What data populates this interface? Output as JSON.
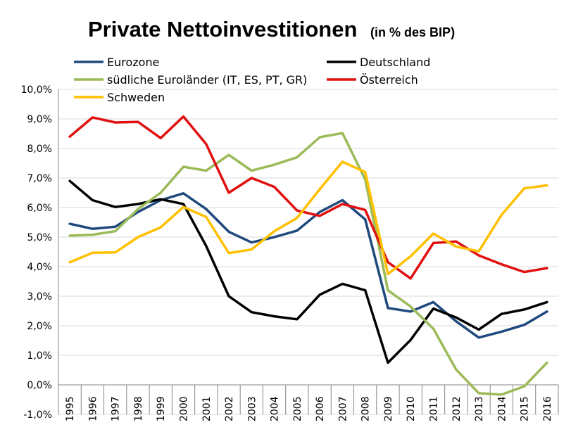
{
  "chart_data": {
    "type": "line",
    "title": "Private Nettoinvestitionen",
    "subtitle": "(in % des BIP)",
    "xlabel": "",
    "ylabel": "",
    "ylim": [
      -1,
      10
    ],
    "yticks": [
      -1,
      0,
      1,
      2,
      3,
      4,
      5,
      6,
      7,
      8,
      9,
      10
    ],
    "ytick_labels": [
      "-1,0%",
      "0,0%",
      "1,0%",
      "2,0%",
      "3,0%",
      "4,0%",
      "5,0%",
      "6,0%",
      "7,0%",
      "8,0%",
      "9,0%",
      "10,0%"
    ],
    "grid": true,
    "legend_position": "top",
    "categories": [
      "1995",
      "1996",
      "1997",
      "1998",
      "1999",
      "2000",
      "2001",
      "2002",
      "2003",
      "2004",
      "2005",
      "2006",
      "2007",
      "2008",
      "2009",
      "2010",
      "2011",
      "2012",
      "2013",
      "2014",
      "2015",
      "2016"
    ],
    "series": [
      {
        "name": "Eurozone",
        "color": "#1f497d",
        "values": [
          5.45,
          5.28,
          5.35,
          5.85,
          6.25,
          6.48,
          5.95,
          5.18,
          4.82,
          5.0,
          5.22,
          5.85,
          6.25,
          5.6,
          2.6,
          2.48,
          2.8,
          2.15,
          1.6,
          1.8,
          2.03,
          2.48
        ]
      },
      {
        "name": "Deutschland",
        "color": "#000000",
        "values": [
          6.9,
          6.25,
          6.02,
          6.12,
          6.28,
          6.12,
          4.7,
          3.0,
          2.46,
          2.32,
          2.22,
          3.05,
          3.42,
          3.2,
          0.75,
          1.52,
          2.58,
          2.28,
          1.87,
          2.4,
          2.55,
          2.8
        ]
      },
      {
        "name": "südliche Euroländer (IT, ES, PT, GR)",
        "color": "#9bbb59",
        "values": [
          5.05,
          5.08,
          5.2,
          5.95,
          6.5,
          7.38,
          7.25,
          7.78,
          7.25,
          7.45,
          7.7,
          8.38,
          8.52,
          6.95,
          3.2,
          2.65,
          1.9,
          0.52,
          -0.28,
          -0.33,
          -0.05,
          0.75
        ]
      },
      {
        "name": "Österreich",
        "color": "#e01010",
        "values": [
          8.4,
          9.05,
          8.88,
          8.9,
          8.35,
          9.08,
          8.15,
          6.5,
          7.0,
          6.7,
          5.9,
          5.72,
          6.12,
          5.92,
          4.15,
          3.6,
          4.8,
          4.85,
          4.38,
          4.08,
          3.82,
          3.95
        ]
      },
      {
        "name": "Schweden",
        "color": "#ffc000",
        "values": [
          4.15,
          4.47,
          4.48,
          5.0,
          5.33,
          6.02,
          5.68,
          4.46,
          4.58,
          5.2,
          5.65,
          6.62,
          7.55,
          7.2,
          3.75,
          4.35,
          5.12,
          4.68,
          4.52,
          5.75,
          6.65,
          6.75
        ]
      }
    ]
  }
}
